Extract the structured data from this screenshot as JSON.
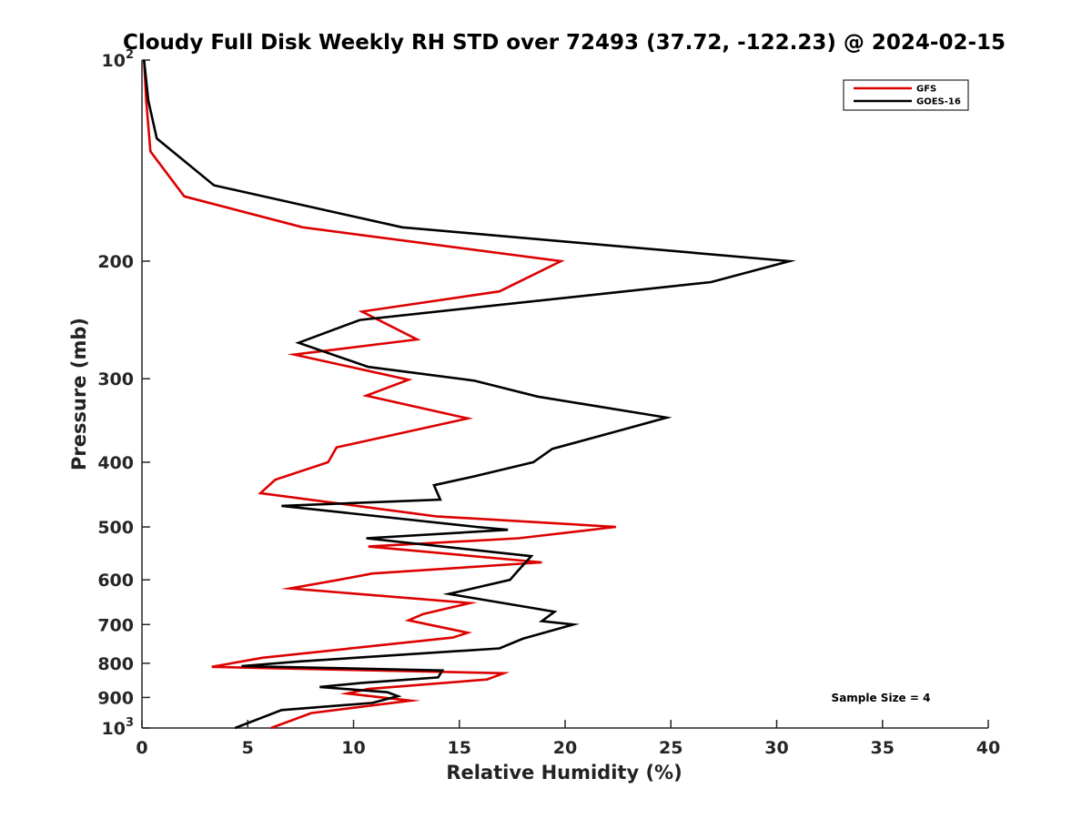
{
  "chart_data": {
    "type": "line",
    "title": "Cloudy Full Disk Weekly RH STD over 72493 (37.72, -122.23) @ 2024-02-15",
    "xlabel": "Relative Humidity (%)",
    "ylabel": "Pressure (mb)",
    "xlim": [
      0,
      40
    ],
    "ylim": [
      100,
      1000
    ],
    "y_scale": "log",
    "y_reversed": true,
    "grid": false,
    "legend_position": "top-right",
    "x_ticks": [
      "0",
      "5",
      "10",
      "15",
      "20",
      "25",
      "30",
      "35",
      "40"
    ],
    "y_ticks": [
      {
        "value": 100,
        "base": "10",
        "exp": "2"
      },
      {
        "value": 200,
        "label": "200"
      },
      {
        "value": 300,
        "label": "300"
      },
      {
        "value": 400,
        "label": "400"
      },
      {
        "value": 500,
        "label": "500"
      },
      {
        "value": 600,
        "label": "600"
      },
      {
        "value": 700,
        "label": "700"
      },
      {
        "value": 800,
        "label": "800"
      },
      {
        "value": 900,
        "label": "900"
      },
      {
        "value": 1000,
        "base": "10",
        "exp": "3"
      }
    ],
    "series": [
      {
        "name": "GFS",
        "color": "#dd0000",
        "points": [
          [
            0.1,
            100
          ],
          [
            0.2,
            115
          ],
          [
            0.4,
            137
          ],
          [
            2.0,
            160
          ],
          [
            7.6,
            178
          ],
          [
            19.8,
            200
          ],
          [
            16.9,
            222
          ],
          [
            10.4,
            238
          ],
          [
            13.0,
            262
          ],
          [
            7.2,
            276
          ],
          [
            12.6,
            301
          ],
          [
            10.6,
            318
          ],
          [
            15.4,
            344
          ],
          [
            9.2,
            380
          ],
          [
            8.8,
            400
          ],
          [
            6.3,
            425
          ],
          [
            5.6,
            445
          ],
          [
            13.9,
            482
          ],
          [
            22.4,
            500
          ],
          [
            17.8,
            520
          ],
          [
            10.7,
            535
          ],
          [
            18.9,
            565
          ],
          [
            10.9,
            587
          ],
          [
            9.3,
            600
          ],
          [
            7.0,
            618
          ],
          [
            15.5,
            650
          ],
          [
            13.3,
            675
          ],
          [
            12.6,
            690
          ],
          [
            15.4,
            720
          ],
          [
            14.7,
            732
          ],
          [
            5.7,
            785
          ],
          [
            3.3,
            810
          ],
          [
            17.1,
            828
          ],
          [
            16.3,
            846
          ],
          [
            10.7,
            874
          ],
          [
            9.7,
            888
          ],
          [
            12.7,
            910
          ],
          [
            8.0,
            950
          ],
          [
            6.1,
            1000
          ]
        ]
      },
      {
        "name": "GOES-16",
        "color": "#000000",
        "points": [
          [
            0.1,
            100
          ],
          [
            0.3,
            115
          ],
          [
            0.7,
            131
          ],
          [
            3.4,
            154
          ],
          [
            12.3,
            178
          ],
          [
            30.6,
            200
          ],
          [
            26.9,
            215
          ],
          [
            10.3,
            245
          ],
          [
            7.4,
            265
          ],
          [
            10.7,
            288
          ],
          [
            15.7,
            302
          ],
          [
            18.7,
            319
          ],
          [
            24.8,
            343
          ],
          [
            22.4,
            360
          ],
          [
            19.4,
            382
          ],
          [
            18.5,
            400
          ],
          [
            15.7,
            420
          ],
          [
            13.8,
            433
          ],
          [
            14.1,
            455
          ],
          [
            6.6,
            465
          ],
          [
            15.8,
            500
          ],
          [
            17.3,
            505
          ],
          [
            10.6,
            520
          ],
          [
            18.4,
            553
          ],
          [
            17.8,
            580
          ],
          [
            17.4,
            600
          ],
          [
            14.5,
            630
          ],
          [
            18.3,
            660
          ],
          [
            19.5,
            670
          ],
          [
            18.9,
            692
          ],
          [
            20.4,
            700
          ],
          [
            18.0,
            735
          ],
          [
            16.9,
            760
          ],
          [
            7.4,
            795
          ],
          [
            4.7,
            808
          ],
          [
            14.2,
            820
          ],
          [
            14.0,
            840
          ],
          [
            10.4,
            856
          ],
          [
            8.4,
            868
          ],
          [
            11.6,
            884
          ],
          [
            12.1,
            896
          ],
          [
            10.9,
            917
          ],
          [
            6.6,
            940
          ],
          [
            4.4,
            1000
          ]
        ]
      }
    ],
    "annotations": [
      "Sample Size = 4"
    ]
  }
}
